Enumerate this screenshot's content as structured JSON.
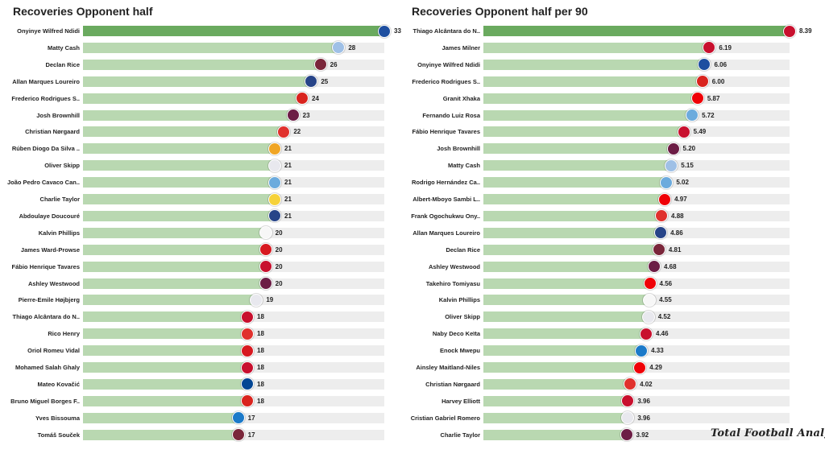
{
  "colors": {
    "top_bar": "#6aaa5f",
    "bar_light": "#b9d8b1",
    "track": "#ededed",
    "LEI": "#1f4fa0",
    "AVL": "#9fc0e6",
    "WHU": "#7a263a",
    "EVE": "#274488",
    "MUN": "#d9241e",
    "BUR": "#6c1d45",
    "BRE": "#e0312d",
    "WOL": "#f0a524",
    "TOT": "#e8e8ee",
    "MCI": "#6cabdd",
    "WAT": "#f6d23a",
    "LEE": "#f7f7f7",
    "SOU": "#d71920",
    "LIV": "#c8102e",
    "CHE": "#034694",
    "BHA": "#1c7ac9",
    "ARS": "#ef0107"
  },
  "watermark": "Total Football Analysis",
  "chart_data": [
    {
      "type": "bar",
      "orientation": "horizontal",
      "title": "Recoveries Opponent half",
      "xlim": [
        0,
        33
      ],
      "categories": [
        "Onyinye Wilfred Ndidi",
        "Matty Cash",
        "Declan Rice",
        "Allan Marques Loureiro",
        "Frederico Rodrigues S..",
        "Josh Brownhill",
        "Christian Nørgaard",
        "Rúben Diogo Da Silva ..",
        "Oliver Skipp",
        "João Pedro Cavaco Can..",
        "Charlie Taylor",
        "Abdoulaye Doucouré",
        "Kalvin Phillips",
        "James  Ward-Prowse",
        "Fábio Henrique Tavares",
        "Ashley Westwood",
        "Pierre-Emile Højbjerg",
        "Thiago Alcântara do N..",
        "Rico Henry",
        "Oriol Romeu Vidal",
        "Mohamed  Salah Ghaly",
        "Mateo Kovačić",
        "Bruno Miguel Borges F..",
        "Yves Bissouma",
        "Tomáš Souček"
      ],
      "values": [
        33,
        28,
        26,
        25,
        24,
        23,
        22,
        21,
        21,
        21,
        21,
        21,
        20,
        20,
        20,
        20,
        19,
        18,
        18,
        18,
        18,
        18,
        18,
        17,
        17
      ],
      "value_labels": [
        "33",
        "28",
        "26",
        "25",
        "24",
        "23",
        "22",
        "21",
        "21",
        "21",
        "21",
        "21",
        "20",
        "20",
        "20",
        "20",
        "19",
        "18",
        "18",
        "18",
        "18",
        "18",
        "18",
        "17",
        "17"
      ],
      "clubs": [
        "LEI",
        "AVL",
        "WHU",
        "EVE",
        "MUN",
        "BUR",
        "BRE",
        "WOL",
        "TOT",
        "MCI",
        "WAT",
        "EVE",
        "LEE",
        "SOU",
        "LIV",
        "BUR",
        "TOT",
        "LIV",
        "BRE",
        "SOU",
        "LIV",
        "CHE",
        "MUN",
        "BHA",
        "WHU"
      ]
    },
    {
      "type": "bar",
      "orientation": "horizontal",
      "title": "Recoveries Opponent half per 90",
      "xlim": [
        0,
        8.39
      ],
      "categories": [
        "Thiago Alcântara do N..",
        "James Milner",
        "Onyinye Wilfred Ndidi",
        "Frederico Rodrigues S..",
        "Granit Xhaka",
        "Fernando Luiz Rosa",
        "Fábio Henrique Tavares",
        "Josh Brownhill",
        "Matty Cash",
        "Rodrigo Hernández Ca..",
        "Albert-Mboyo Sambi L..",
        "Frank Ogochukwu Ony..",
        "Allan Marques Loureiro",
        "Declan Rice",
        "Ashley Westwood",
        "Takehiro Tomiyasu",
        "Kalvin Phillips",
        "Oliver Skipp",
        "Naby Deco Keïta",
        "Enock Mwepu",
        "Ainsley Maitland-Niles",
        "Christian Nørgaard",
        "Harvey Elliott",
        "Cristian Gabriel Romero",
        "Charlie Taylor"
      ],
      "values": [
        8.39,
        6.19,
        6.06,
        6.0,
        5.87,
        5.72,
        5.49,
        5.2,
        5.15,
        5.02,
        4.97,
        4.88,
        4.86,
        4.81,
        4.68,
        4.56,
        4.55,
        4.52,
        4.46,
        4.33,
        4.29,
        4.02,
        3.96,
        3.96,
        3.92
      ],
      "value_labels": [
        "8.39",
        "6.19",
        "6.06",
        "6.00",
        "5.87",
        "5.72",
        "5.49",
        "5.20",
        "5.15",
        "5.02",
        "4.97",
        "4.88",
        "4.86",
        "4.81",
        "4.68",
        "4.56",
        "4.55",
        "4.52",
        "4.46",
        "4.33",
        "4.29",
        "4.02",
        "3.96",
        "3.96",
        "3.92"
      ],
      "clubs": [
        "LIV",
        "LIV",
        "LEI",
        "MUN",
        "ARS",
        "MCI",
        "LIV",
        "BUR",
        "AVL",
        "MCI",
        "ARS",
        "BRE",
        "EVE",
        "WHU",
        "BUR",
        "ARS",
        "LEE",
        "TOT",
        "LIV",
        "BHA",
        "ARS",
        "BRE",
        "LIV",
        "TOT",
        "BUR"
      ]
    }
  ]
}
